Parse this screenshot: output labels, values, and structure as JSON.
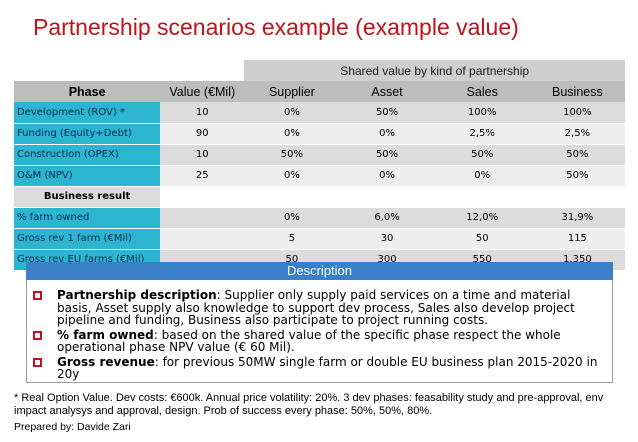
{
  "title": "Partnership scenarios example (example value)",
  "table": {
    "group_header": "Shared value by kind of partnership",
    "columns": [
      "Phase",
      "Value (€Mil)",
      "Supplier",
      "Asset",
      "Sales",
      "Business"
    ],
    "phase_rows": [
      {
        "label": "Development (ROV) *",
        "value": "10",
        "supplier": "0%",
        "asset": "50%",
        "sales": "100%",
        "business": "100%"
      },
      {
        "label": "Funding (Equity+Debt)",
        "value": "90",
        "supplier": "0%",
        "asset": "0%",
        "sales": "2,5%",
        "business": "2,5%"
      },
      {
        "label": "Construction (OPEX)",
        "value": "10",
        "supplier": "50%",
        "asset": "50%",
        "sales": "50%",
        "business": "50%"
      },
      {
        "label": "O&M (NPV)",
        "value": "25",
        "supplier": "0%",
        "asset": "0%",
        "sales": "0%",
        "business": "50%"
      }
    ],
    "result_header": "Business result",
    "result_rows": [
      {
        "label": "% farm owned",
        "value": "",
        "supplier": "0%",
        "asset": "6,0%",
        "sales": "12,0%",
        "business": "31,9%"
      },
      {
        "label": "Gross rev 1 farm (€Mil)",
        "value": "",
        "supplier": "5",
        "asset": "30",
        "sales": "50",
        "business": "115"
      },
      {
        "label": "Gross rev EU farms (€Mil)",
        "value": "",
        "supplier": "50",
        "asset": "300",
        "sales": "550",
        "business": "1.350"
      }
    ]
  },
  "description": {
    "header": "Description",
    "bullets": [
      {
        "term": "Partnership description",
        "text": ": Supplier only supply paid services on a time and material basis, Asset supply also knowledge to support dev process, Sales also develop project pipeline and funding, Business also participate to project running costs."
      },
      {
        "term": "% farm owned",
        "text": ": based on the shared value of the specific phase respect the whole operational phase NPV value (€ 60 Mil)."
      },
      {
        "term": "Gross revenue",
        "text": ": for previous 50MW single farm or double EU business plan 2015-2020 in 20y"
      }
    ]
  },
  "footnote": "* Real Option Value. Dev costs: €600k. Annual price volatility: 20%. 3 dev phases: feasability study and pre-approval, env impact analysys and approval, design. Prob of success every phase: 50%, 50%, 80%.",
  "prepared_by": "Prepared by: Davide Zari",
  "colors": {
    "title": "#c0121b",
    "label_cell": "#2bb5ce",
    "description_bar": "#3a80c9"
  }
}
